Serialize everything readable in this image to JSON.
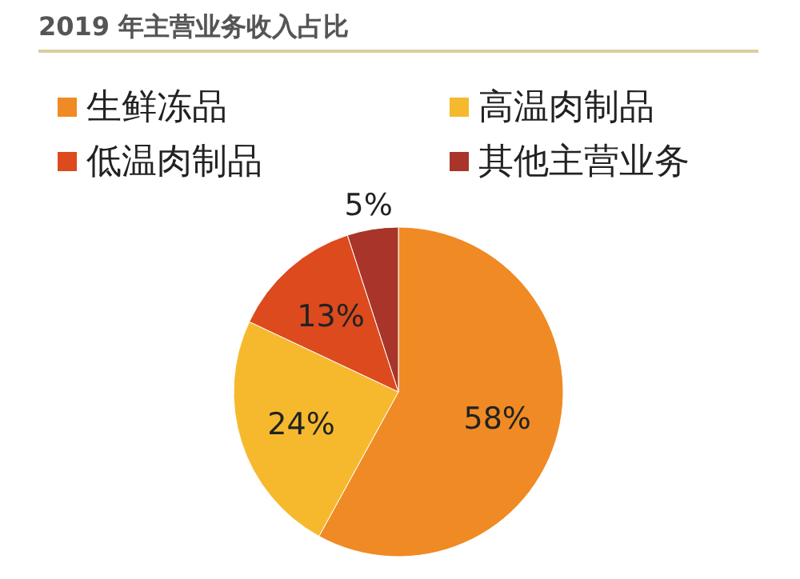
{
  "chart_data": {
    "type": "pie",
    "title": "2019 年主营业务收入占比",
    "categories": [
      "生鲜冻品",
      "高温肉制品",
      "低温肉制品",
      "其他主营业务"
    ],
    "values": [
      58,
      24,
      13,
      5
    ],
    "colors": [
      "#f08a24",
      "#f6b92e",
      "#dc4a1e",
      "#a8342a"
    ],
    "value_labels": [
      "58%",
      "24%",
      "13%",
      "5%"
    ],
    "legend": "top"
  }
}
